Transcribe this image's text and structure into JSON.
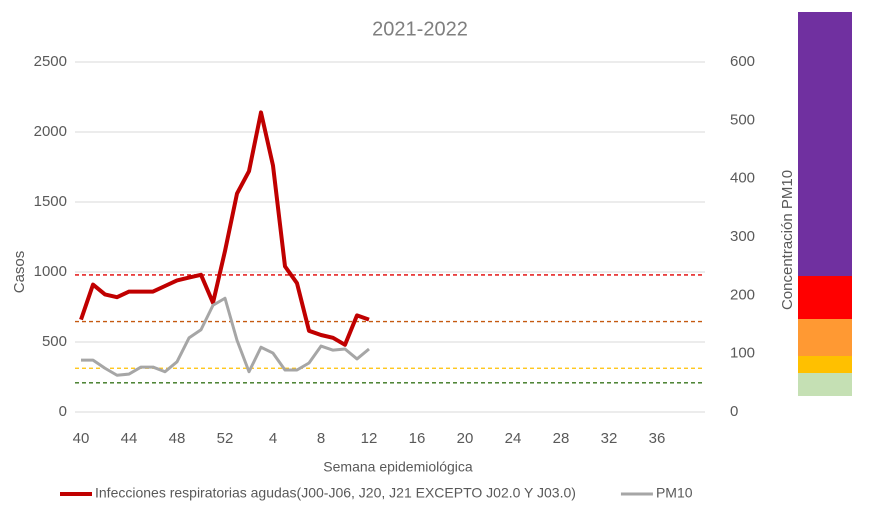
{
  "chart_data": {
    "type": "line",
    "title": "2021-2022",
    "x_label": "Semana epidemiológica",
    "y_label": "Casos",
    "y2_label": "Concentración PM10",
    "categories": [
      "40",
      null,
      null,
      null,
      "44",
      null,
      null,
      null,
      "48",
      null,
      null,
      null,
      "52",
      null,
      null,
      null,
      "4",
      null,
      null,
      null,
      "8",
      null,
      null,
      null,
      "12",
      null,
      null,
      null,
      "16",
      null,
      null,
      null,
      "20",
      null,
      null,
      null,
      "24",
      null,
      null,
      null,
      "28",
      null,
      null,
      null,
      "32",
      null,
      null,
      null,
      "36",
      null,
      null,
      null
    ],
    "series": [
      {
        "name": "Infecciones respiratorias agudas(J00-J06, J20, J21 EXCEPTO J02.0 Y J03.0)",
        "color": "#c00000",
        "width": 4,
        "values": [
          660,
          910,
          840,
          820,
          860,
          860,
          860,
          900,
          940,
          960,
          980,
          780,
          1150,
          1560,
          1720,
          2140,
          1760,
          1040,
          920,
          580,
          550,
          530,
          480,
          690,
          660,
          null,
          null,
          null,
          null,
          null,
          null,
          null,
          null,
          null,
          null,
          null,
          null,
          null,
          null,
          null,
          null,
          null,
          null,
          null,
          null,
          null,
          null,
          null,
          null,
          null,
          null,
          null
        ]
      },
      {
        "name": "PM10",
        "color": "#a6a6a6",
        "width": 3,
        "axis": "y2",
        "values": [
          89,
          89,
          75,
          63,
          65,
          77,
          77,
          69,
          86,
          127,
          141,
          183,
          195,
          123,
          69,
          111,
          101,
          72,
          72,
          84,
          113,
          106,
          108,
          91,
          108,
          null,
          null,
          null,
          null,
          null,
          null,
          null,
          null,
          null,
          null,
          null,
          null,
          null,
          null,
          null,
          null,
          null,
          null,
          null,
          null,
          null,
          null,
          null,
          null,
          null,
          null,
          null
        ]
      }
    ],
    "reference_lines": [
      {
        "value": 235,
        "color": "#e00000",
        "axis": "y2"
      },
      {
        "value": 155,
        "color": "#c55a11",
        "axis": "y2"
      },
      {
        "value": 75,
        "color": "#ffc000",
        "axis": "y2"
      },
      {
        "value": 50,
        "color": "#38761d",
        "axis": "y2"
      }
    ],
    "ylim": [
      0,
      2500
    ],
    "yticks": [
      0,
      500,
      1000,
      1500,
      2000,
      2500
    ],
    "y2lim": [
      0,
      600
    ],
    "y2ticks": [
      0,
      100,
      200,
      300,
      400,
      500,
      600
    ],
    "grid": true
  }
}
